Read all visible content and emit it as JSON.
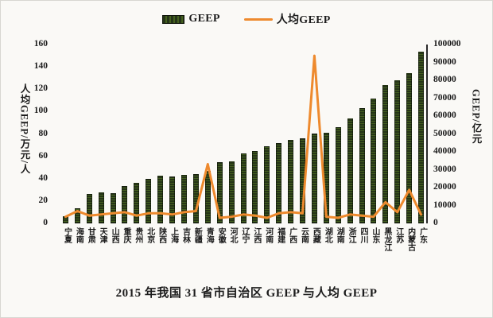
{
  "title": "2015 年我国 31 省市自治区 GEEP 与人均 GEEP",
  "legend": {
    "bar_label": "GEEP",
    "line_label": "人均GEEP"
  },
  "colors": {
    "bar_base": "#253417",
    "bar_fleck": "#44601f",
    "line_orange": "#ee8a2e",
    "axis_line": "#2a2a2a"
  },
  "left_axis": {
    "title": "人均GEEP/万元/人",
    "ticks": [
      0,
      20,
      40,
      60,
      80,
      100,
      120,
      140,
      160
    ],
    "min": 0,
    "max": 160
  },
  "right_axis": {
    "title": "GEEP/亿元",
    "ticks": [
      0,
      10000,
      20000,
      30000,
      40000,
      50000,
      60000,
      70000,
      80000,
      90000,
      100000
    ],
    "min": 0,
    "max": 100000
  },
  "chart_data": {
    "type": "bar",
    "note": "combo chart: bars = GEEP (right axis, 亿元), line = 人均GEEP (left axis, 万元/人)",
    "title": "2015 年我国 31 省市自治区 GEEP 与人均 GEEP",
    "categories": [
      "宁夏",
      "海南",
      "甘肃",
      "天津",
      "山西",
      "重庆",
      "贵州",
      "北京",
      "陕西",
      "上海",
      "吉林",
      "新疆",
      "青海",
      "安徽",
      "河北",
      "辽宁",
      "江西",
      "河南",
      "福建",
      "广西",
      "云南",
      "西藏",
      "湖北",
      "湖南",
      "浙江",
      "四川",
      "山东",
      "黑龙江",
      "江苏",
      "内蒙古",
      "广东"
    ],
    "series": [
      {
        "name": "GEEP",
        "type": "bar",
        "axis": "right",
        "unit": "亿元",
        "values": [
          3800,
          8300,
          16500,
          17300,
          17000,
          21000,
          22500,
          25000,
          26500,
          26300,
          27200,
          27600,
          29500,
          34200,
          34600,
          39200,
          40600,
          43000,
          44700,
          46700,
          47500,
          50200,
          50800,
          54000,
          58500,
          64500,
          70000,
          77300,
          80000,
          84200,
          96000
        ]
      },
      {
        "name": "人均GEEP",
        "type": "line",
        "axis": "left",
        "unit": "万元/人",
        "values": [
          6,
          11,
          7,
          8,
          9,
          10,
          7,
          9,
          9,
          8,
          10,
          11,
          53,
          5,
          6,
          8,
          7,
          5,
          9,
          10,
          9,
          150,
          6,
          5,
          8,
          7,
          6,
          19,
          10,
          30,
          8
        ]
      }
    ],
    "left_ylim": [
      0,
      160
    ],
    "right_ylim": [
      0,
      100000
    ],
    "grid": false,
    "legend_position": "top-center"
  }
}
